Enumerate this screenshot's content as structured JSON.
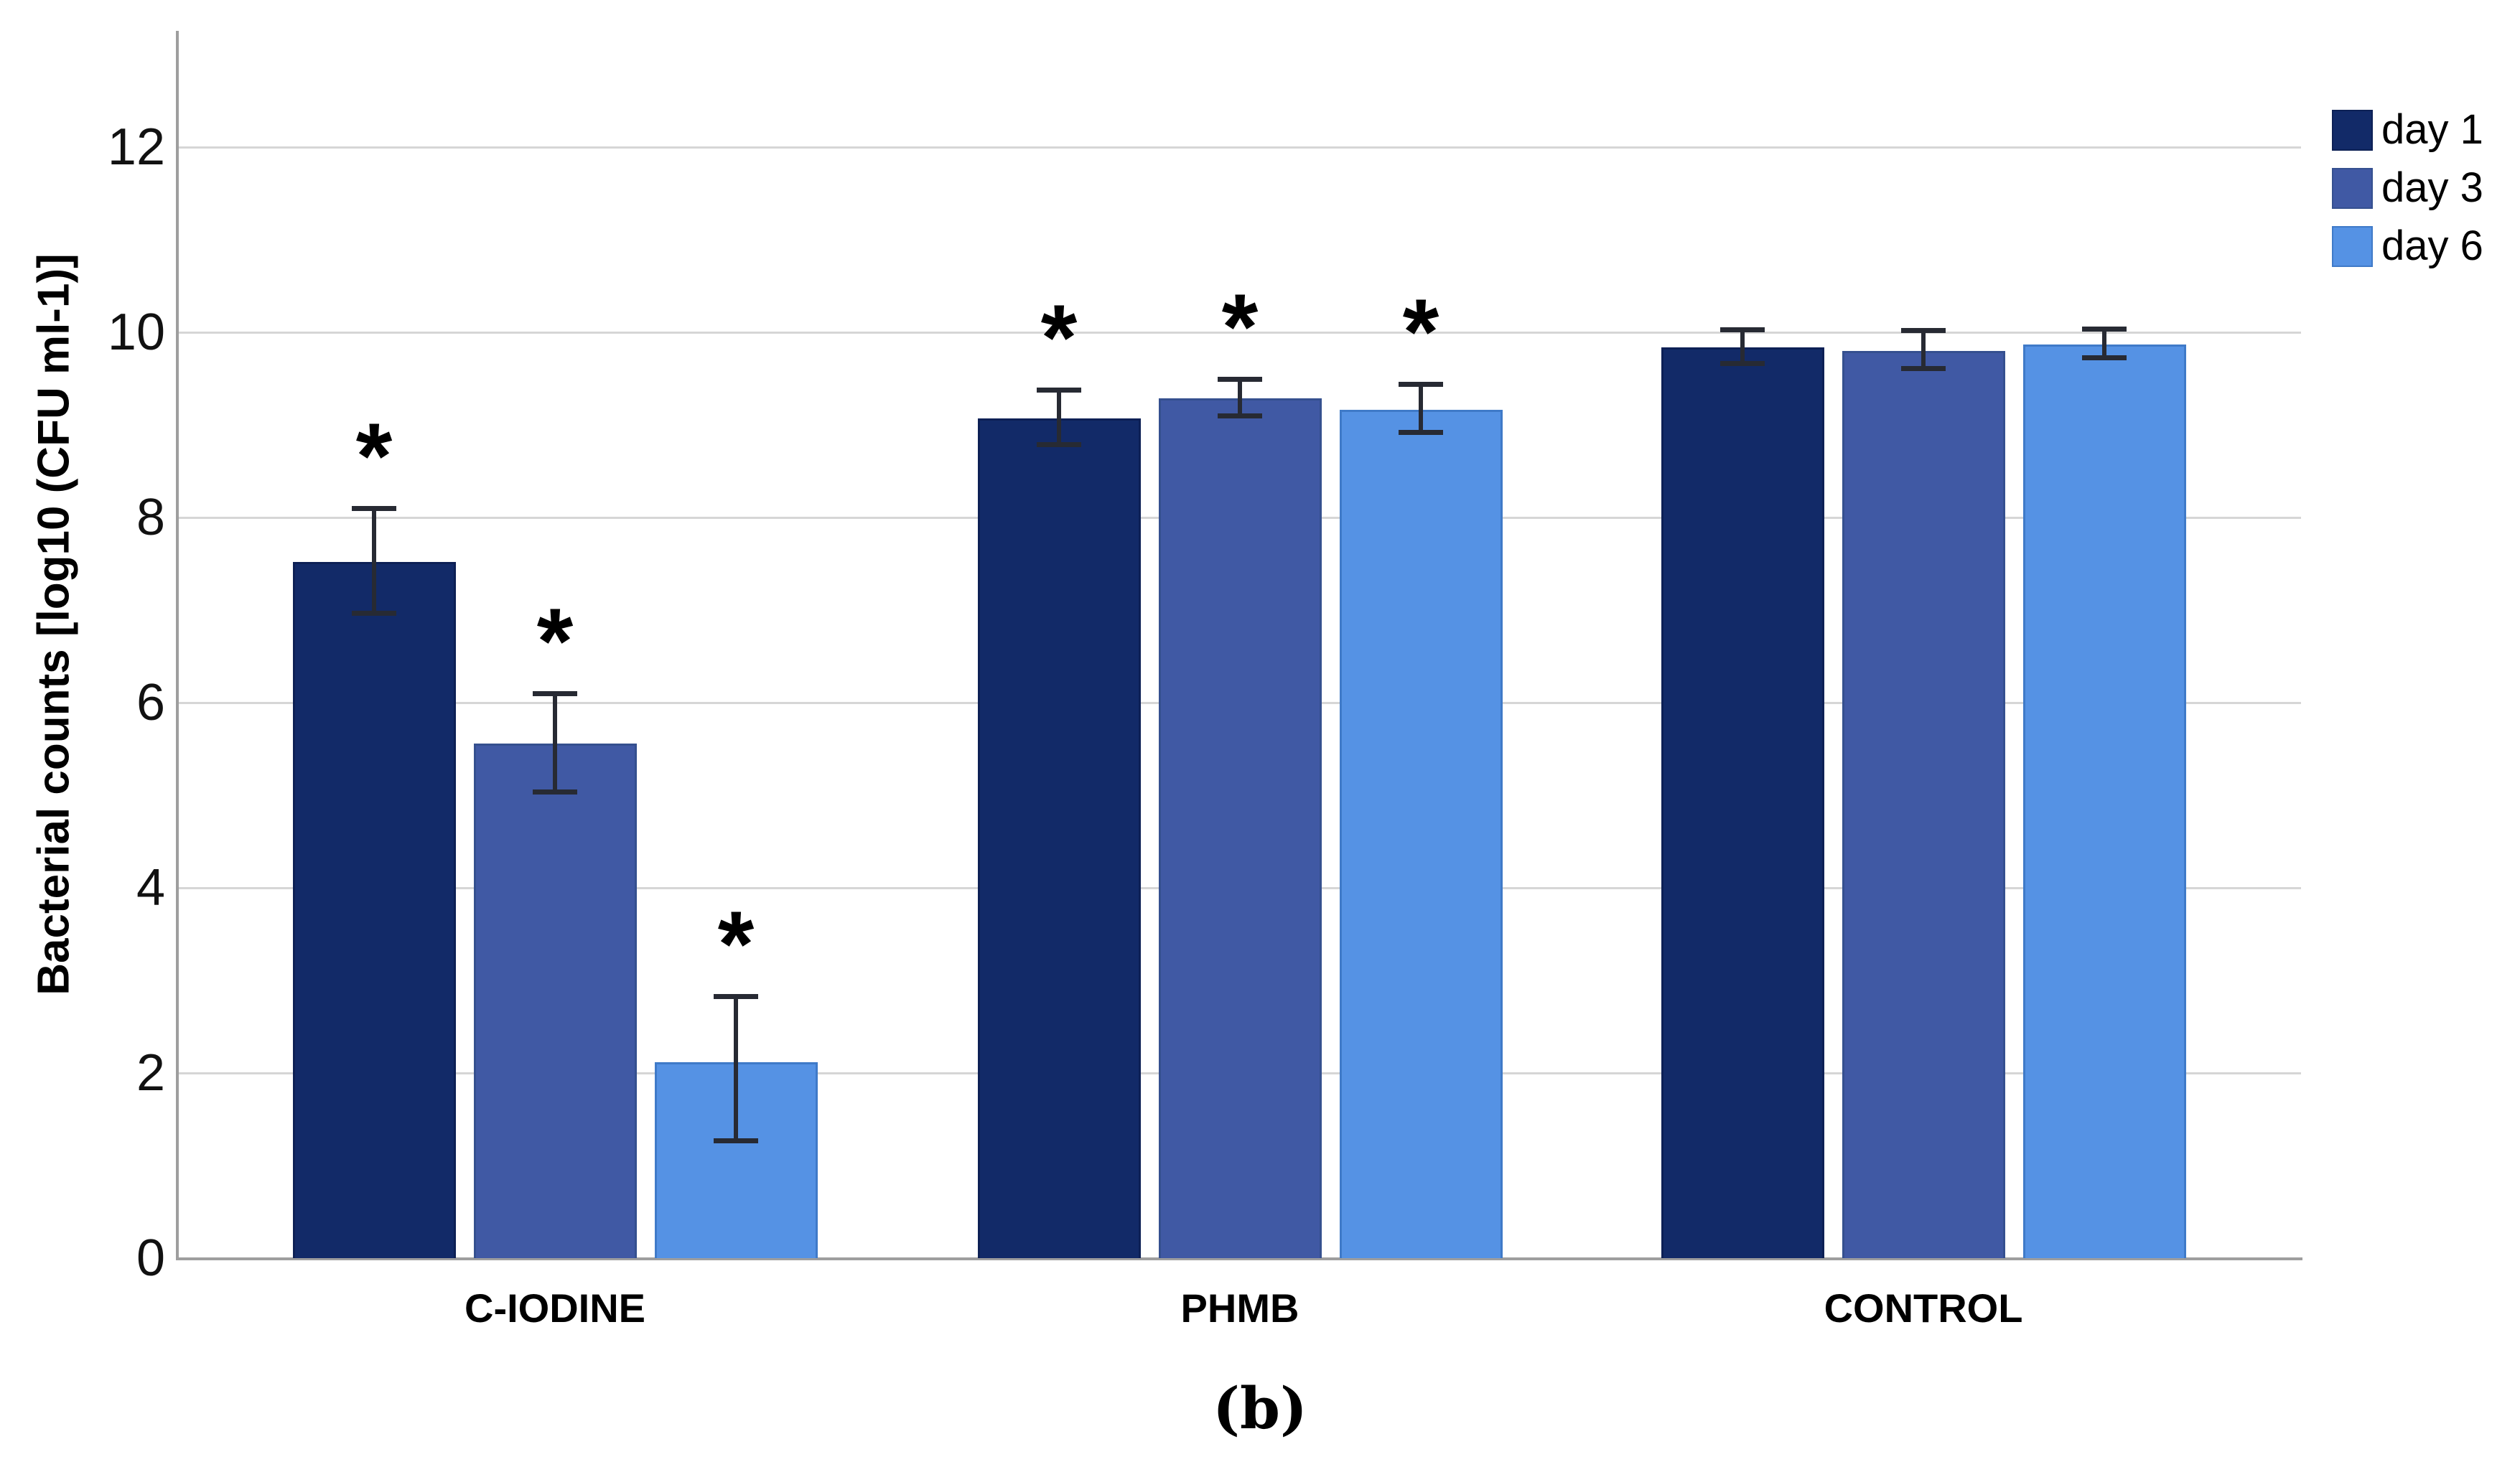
{
  "figure": {
    "caption": "(b)",
    "background": "#ffffff"
  },
  "chart_data": {
    "type": "bar",
    "title": "",
    "xlabel": "",
    "ylabel": "Bacterial counts [log10 (CFU ml-1)]",
    "ylim": [
      0,
      13.25
    ],
    "yticks": [
      0,
      2,
      4,
      6,
      8,
      10,
      12
    ],
    "grid": true,
    "grid_color": "#d6d6d6",
    "axis_color": "#9e9e9e",
    "error_bar_color": "#272a33",
    "significance_marker": "*",
    "legend_position": "top-right",
    "categories": [
      "C-IODINE",
      "PHMB",
      "CONTROL"
    ],
    "series": [
      {
        "name": "day 1",
        "color": "#122a68",
        "border_color": "#0d2055",
        "values": [
          7.52,
          9.07,
          9.84
        ],
        "err_low": [
          6.97,
          8.79,
          9.67
        ],
        "err_high": [
          8.1,
          9.38,
          10.03
        ],
        "significant": [
          true,
          true,
          false
        ]
      },
      {
        "name": "day 3",
        "color": "#4059a4",
        "border_color": "#35508f",
        "values": [
          5.56,
          9.29,
          9.8
        ],
        "err_low": [
          5.04,
          9.1,
          9.61
        ],
        "err_high": [
          6.1,
          9.5,
          10.02
        ],
        "significant": [
          true,
          true,
          false
        ]
      },
      {
        "name": "day 6",
        "color": "#5592e4",
        "border_color": "#3f7ac8",
        "values": [
          2.12,
          9.16,
          9.87
        ],
        "err_low": [
          1.27,
          8.92,
          9.73
        ],
        "err_high": [
          2.83,
          9.44,
          10.04
        ],
        "significant": [
          true,
          true,
          false
        ]
      }
    ]
  }
}
